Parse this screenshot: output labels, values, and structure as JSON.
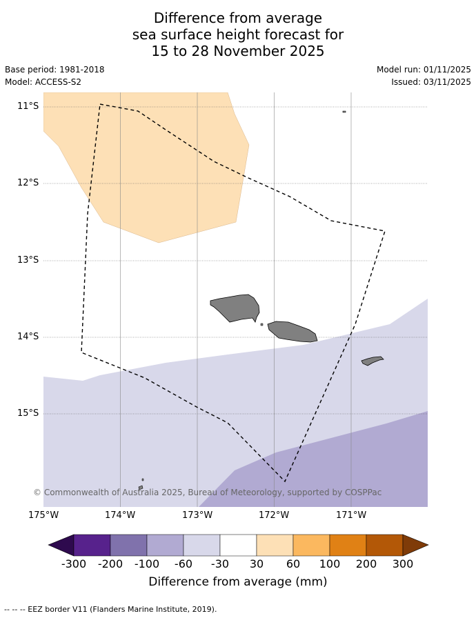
{
  "title": {
    "line1": "Difference from average",
    "line2": "sea surface height forecast for",
    "line3": "15 to 28 November 2025"
  },
  "meta": {
    "base_period": "Base period: 1981-2018",
    "model": "Model: ACCESS-S2",
    "model_run": "Model run: 01/11/2025",
    "issued": "Issued: 03/11/2025"
  },
  "map": {
    "lat_labels": [
      "11°S",
      "12°S",
      "13°S",
      "14°S",
      "15°S"
    ],
    "lon_labels": [
      "175°W",
      "174°W",
      "173°W",
      "172°W",
      "171°W"
    ],
    "copyright": "© Commonwealth of Australia 2025, Bureau of Meteorology, supported by COSPPac",
    "colors": {
      "positive_30_60": "#fde0b6",
      "negative_60_30": "#d8d8ea",
      "negative_100_60": "#b1aad2",
      "land": "#808080"
    }
  },
  "colorbar": {
    "labels": [
      "-300",
      "-200",
      "-100",
      "-60",
      "-30",
      "30",
      "60",
      "100",
      "200",
      "300"
    ],
    "colors": [
      "#2e0a4e",
      "#57228c",
      "#8072ac",
      "#b1aad2",
      "#d8d8ea",
      "#ffffff",
      "#fde0b6",
      "#fbb85f",
      "#e08115",
      "#b35807",
      "#7f3b08"
    ],
    "title": "Difference from average (mm)"
  },
  "footer": "--  --  -- EEZ border V11 (Flanders Marine Institute, 2019)."
}
